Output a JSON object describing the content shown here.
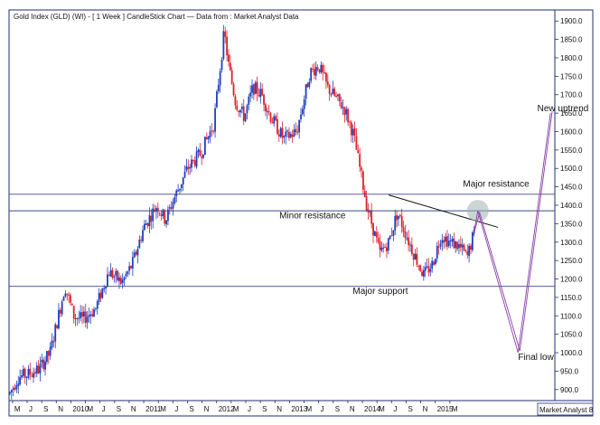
{
  "chart_data": {
    "type": "candlestick",
    "title": "Gold Index (GLD) (WI) -  [ 1 Week ] CandleStick Chart — Data from : Market Analyst Data",
    "watermark": "Market Analyst 8",
    "y_ticks": [
      "900.0",
      "950.0",
      "1000.0",
      "1050.0",
      "1100.0",
      "1150.0",
      "1200.0",
      "1250.0",
      "1300.0",
      "1350.0",
      "1400.0",
      "1450.0",
      "1500.0",
      "1550.0",
      "1600.0",
      "1650.0",
      "1700.0",
      "1750.0",
      "1800.0",
      "1850.0",
      "1900.0"
    ],
    "ylim": [
      870,
      1930
    ],
    "x_ticks": [
      "M",
      "J",
      "S",
      "N",
      "2010",
      "M",
      "J",
      "S",
      "N",
      "2011",
      "M",
      "J",
      "S",
      "N",
      "2012",
      "M",
      "J",
      "S",
      "N",
      "2013",
      "M",
      "J",
      "S",
      "N",
      "2014",
      "M",
      "J",
      "S",
      "N",
      "2015",
      "M"
    ],
    "xlim": [
      2009.21,
      2015.45
    ],
    "up_color": "#1f3fbf",
    "down_color": "#e0202a",
    "price_path": [
      [
        2009.22,
        890
      ],
      [
        2009.32,
        935
      ],
      [
        2009.42,
        940
      ],
      [
        2009.55,
        955
      ],
      [
        2009.68,
        1000
      ],
      [
        2009.85,
        1180
      ],
      [
        2009.95,
        1100
      ],
      [
        2010.05,
        1090
      ],
      [
        2010.2,
        1120
      ],
      [
        2010.35,
        1220
      ],
      [
        2010.5,
        1190
      ],
      [
        2010.62,
        1240
      ],
      [
        2010.75,
        1340
      ],
      [
        2010.9,
        1400
      ],
      [
        2011.0,
        1360
      ],
      [
        2011.1,
        1420
      ],
      [
        2011.25,
        1500
      ],
      [
        2011.4,
        1540
      ],
      [
        2011.55,
        1620
      ],
      [
        2011.67,
        1870
      ],
      [
        2011.72,
        1780
      ],
      [
        2011.8,
        1680
      ],
      [
        2011.9,
        1640
      ],
      [
        2012.0,
        1720
      ],
      [
        2012.1,
        1700
      ],
      [
        2012.2,
        1640
      ],
      [
        2012.35,
        1580
      ],
      [
        2012.5,
        1600
      ],
      [
        2012.65,
        1760
      ],
      [
        2012.75,
        1780
      ],
      [
        2012.85,
        1720
      ],
      [
        2012.95,
        1690
      ],
      [
        2013.05,
        1660
      ],
      [
        2013.15,
        1590
      ],
      [
        2013.3,
        1400
      ],
      [
        2013.45,
        1270
      ],
      [
        2013.55,
        1300
      ],
      [
        2013.65,
        1380
      ],
      [
        2013.8,
        1290
      ],
      [
        2013.95,
        1210
      ],
      [
        2014.05,
        1240
      ],
      [
        2014.15,
        1320
      ],
      [
        2014.25,
        1300
      ],
      [
        2014.35,
        1290
      ],
      [
        2014.45,
        1260
      ],
      [
        2014.52,
        1320
      ]
    ],
    "horizontal_lines": [
      {
        "label": "Major resistance",
        "value": 1430
      },
      {
        "label": "Minor resistance",
        "value": 1385
      },
      {
        "label": "Major support",
        "value": 1180
      }
    ],
    "trendline": [
      [
        2013.55,
        1428
      ],
      [
        2014.8,
        1340
      ]
    ],
    "projection_paths": [
      [
        [
          2014.52,
          1320
        ],
        [
          2014.57,
          1385
        ],
        [
          2015.03,
          1000
        ],
        [
          2015.4,
          1650
        ]
      ],
      [
        [
          2014.52,
          1320
        ],
        [
          2014.59,
          1380
        ],
        [
          2015.05,
          1005
        ],
        [
          2015.42,
          1655
        ]
      ]
    ],
    "circle_marker": [
      2014.57,
      1385
    ],
    "annotations": [
      {
        "text": "Major resistance",
        "x": 2014.4,
        "y": 1450
      },
      {
        "text": "Minor resistance",
        "x": 2012.3,
        "y": 1365
      },
      {
        "text": "Major support",
        "x": 2013.14,
        "y": 1160
      },
      {
        "text": "New uptrend",
        "x": 2015.25,
        "y": 1655
      },
      {
        "text": "Final low",
        "x": 2015.03,
        "y": 980
      }
    ]
  }
}
